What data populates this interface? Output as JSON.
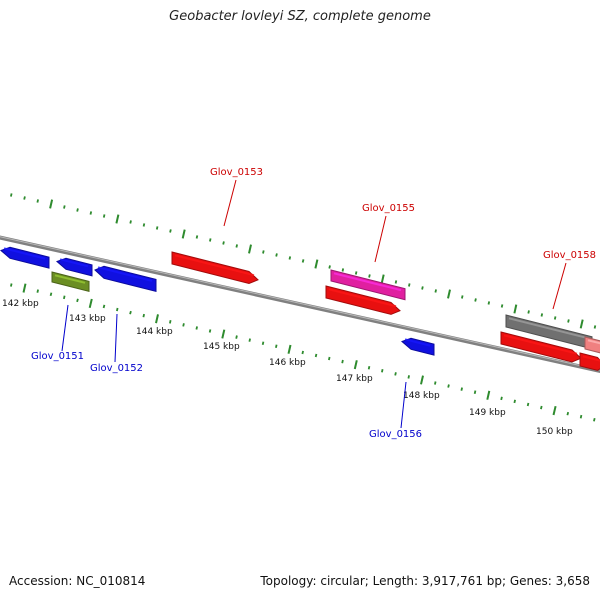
{
  "title": "Geobacter lovleyi SZ, complete genome",
  "accession": "Accession: NC_010814",
  "summary": "Topology: circular; Length: 3,917,761 bp; Genes: 3,658",
  "colors": {
    "backbone": "#808080",
    "tick": "#2e8b2e",
    "forward_label": "#cc0000",
    "reverse_label": "#0000cc",
    "blue": "#1010e0",
    "red": "#e81010",
    "magenta": "#e020a0",
    "olive": "#6b8e23",
    "gray": "#707070",
    "pink": "#f08080"
  },
  "scale_labels": [
    "142 kbp",
    "143 kbp",
    "144 kbp",
    "145 kbp",
    "146 kbp",
    "147 kbp",
    "148 kbp",
    "149 kbp",
    "150 kbp"
  ],
  "gene_labels": [
    {
      "text": "Glov_0151",
      "strand": "reverse"
    },
    {
      "text": "Glov_0152",
      "strand": "reverse"
    },
    {
      "text": "Glov_0153",
      "strand": "forward"
    },
    {
      "text": "Glov_0155",
      "strand": "forward"
    },
    {
      "text": "Glov_0156",
      "strand": "reverse"
    },
    {
      "text": "Glov_0158",
      "strand": "forward"
    }
  ],
  "features": [
    {
      "color": "blue",
      "direction": "left"
    },
    {
      "color": "blue",
      "direction": "left"
    },
    {
      "color": "blue",
      "direction": "left"
    },
    {
      "color": "olive",
      "direction": "none"
    },
    {
      "color": "red",
      "direction": "right"
    },
    {
      "color": "magenta",
      "direction": "none"
    },
    {
      "color": "red",
      "direction": "right"
    },
    {
      "color": "blue",
      "direction": "left"
    },
    {
      "color": "gray",
      "direction": "none"
    },
    {
      "color": "pink",
      "direction": "none"
    },
    {
      "color": "red",
      "direction": "right"
    },
    {
      "color": "red",
      "direction": "right"
    }
  ]
}
